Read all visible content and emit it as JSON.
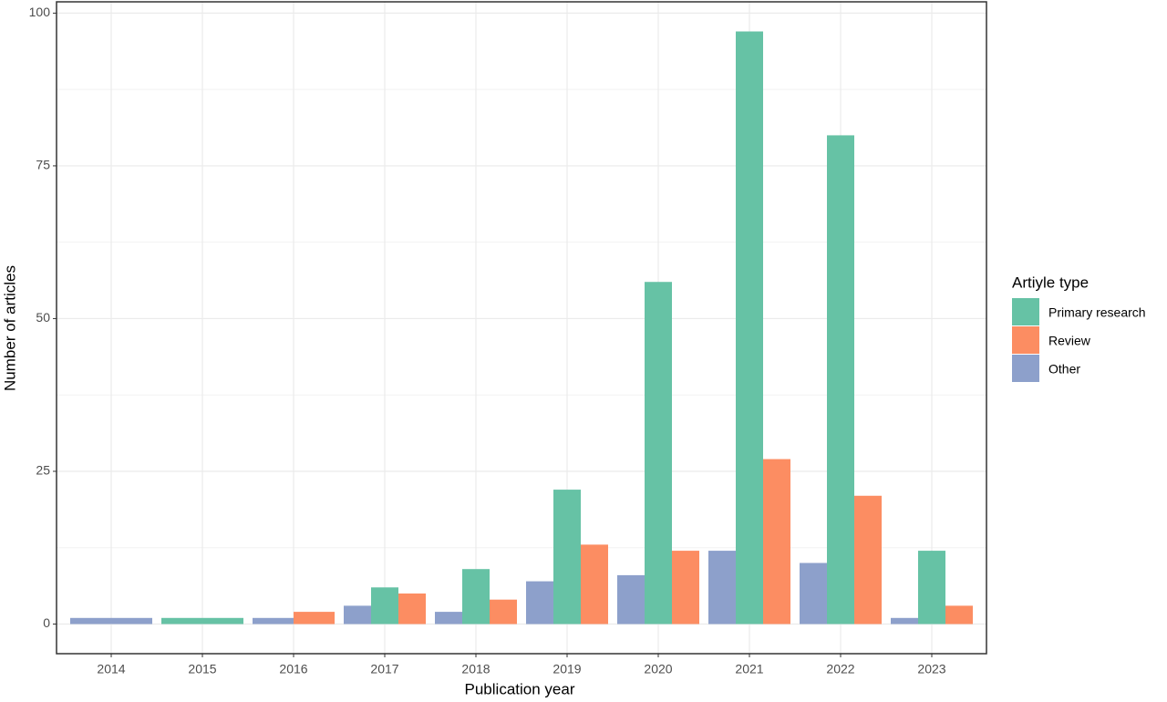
{
  "chart_data": {
    "type": "bar",
    "x_label": "Publication year",
    "y_label": "Number of articles",
    "legend_title": "Artiyle type",
    "legend_position": "right",
    "categories": [
      "2014",
      "2015",
      "2016",
      "2017",
      "2018",
      "2019",
      "2020",
      "2021",
      "2022",
      "2023"
    ],
    "series": [
      {
        "name": "Primary research",
        "color": "#66c2a5",
        "values": [
          null,
          1,
          null,
          6,
          9,
          22,
          56,
          97,
          80,
          12
        ]
      },
      {
        "name": "Review",
        "color": "#fc8d62",
        "values": [
          null,
          null,
          2,
          5,
          4,
          13,
          12,
          27,
          21,
          3
        ]
      },
      {
        "name": "Other",
        "color": "#8da0cb",
        "values": [
          1,
          null,
          1,
          3,
          2,
          7,
          8,
          12,
          10,
          1
        ]
      }
    ],
    "ylim": [
      -4.85,
      101.85
    ],
    "yticks": [
      0,
      25,
      50,
      75,
      100
    ],
    "grid": true
  }
}
